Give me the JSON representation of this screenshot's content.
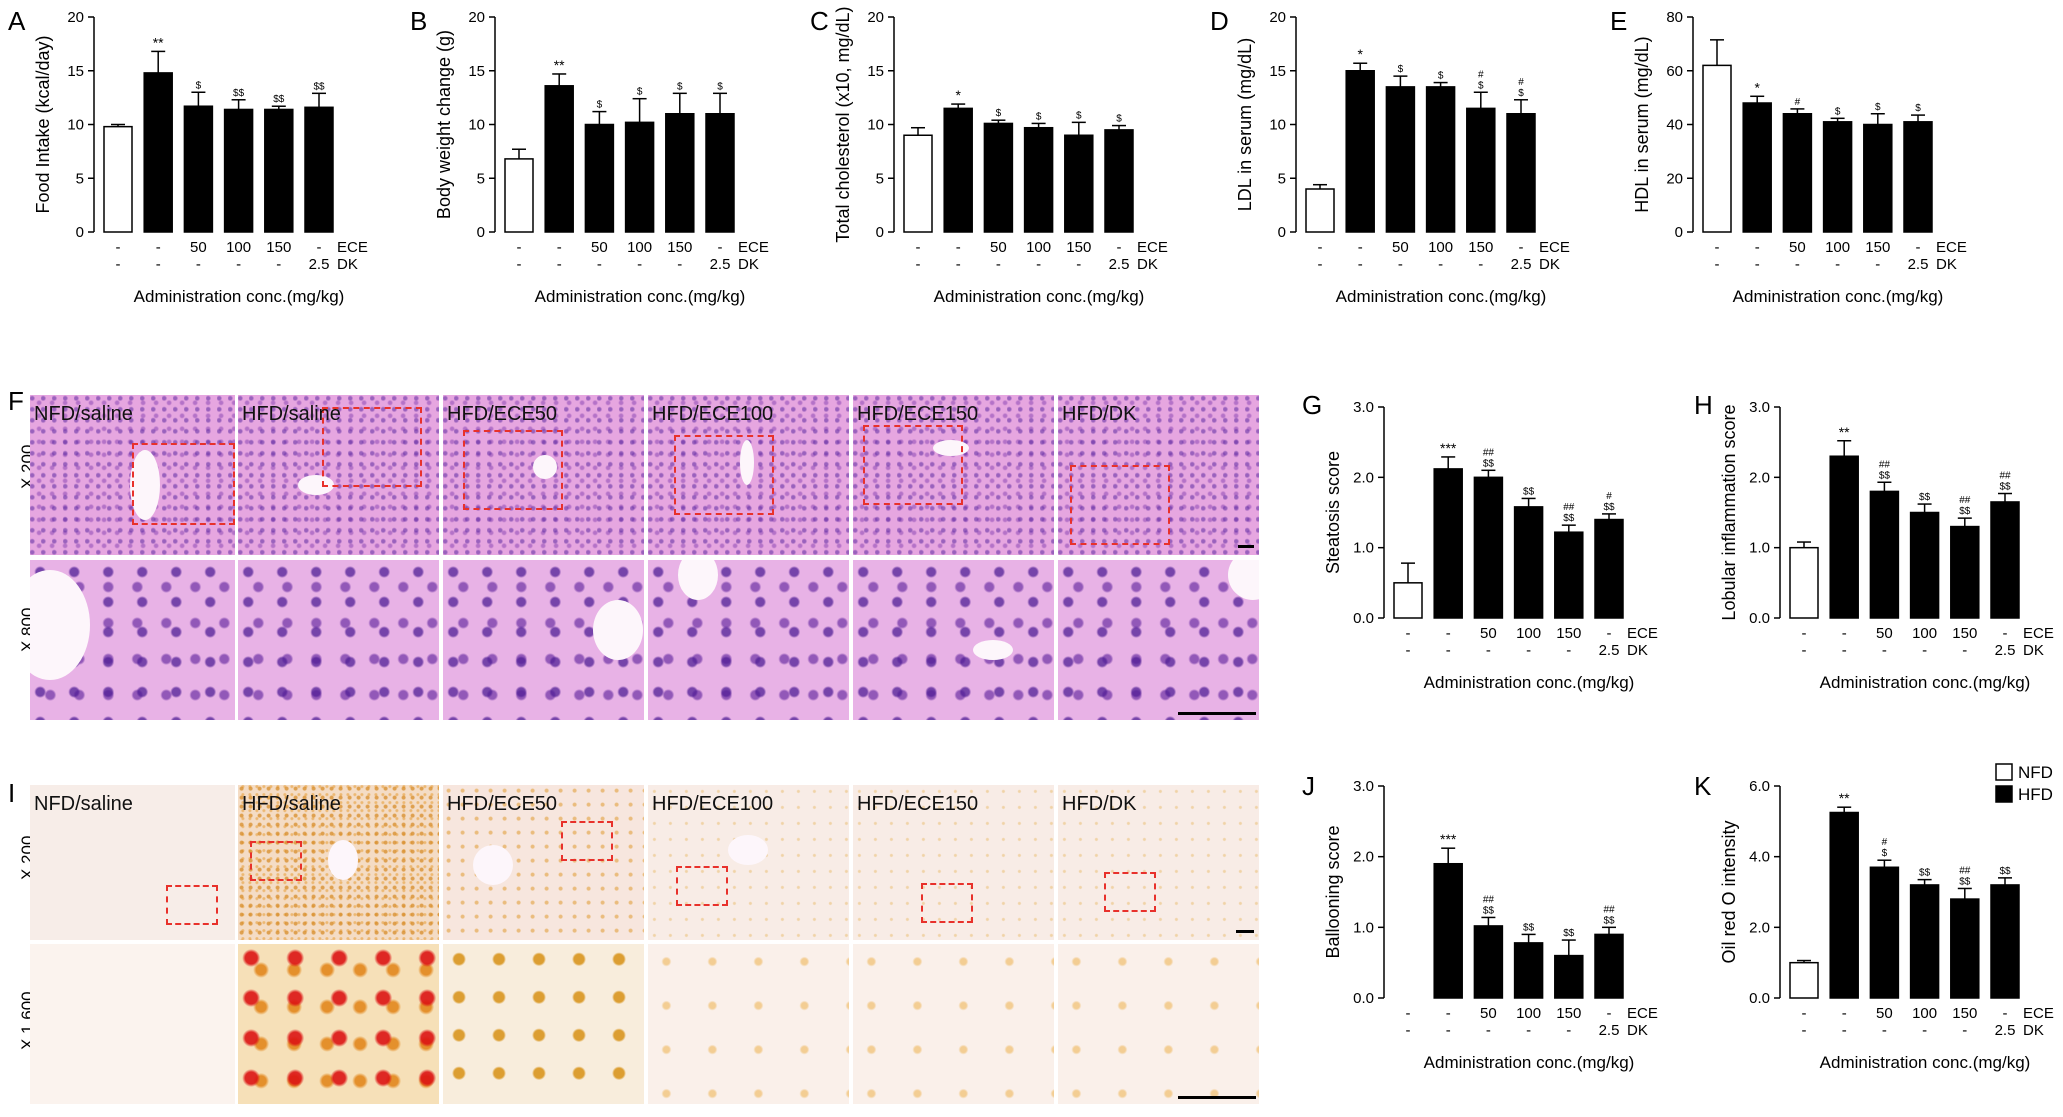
{
  "bar_style": {
    "control_fill": "#ffffff",
    "treated_fill": "#000000",
    "stroke": "#000000"
  },
  "x_rows": {
    "ece": [
      "-",
      "-",
      "50",
      "100",
      "150",
      "-"
    ],
    "dk": [
      "-",
      "-",
      "-",
      "-",
      "-",
      "2.5"
    ],
    "ece_label": "ECE",
    "dk_label": "DK",
    "axis_title": "Administration conc.(mg/kg)"
  },
  "legend": {
    "items": [
      {
        "label": "NFD",
        "fill": "#ffffff"
      },
      {
        "label": "HFD",
        "fill": "#000000"
      }
    ]
  },
  "chart_data": [
    {
      "id": "A",
      "type": "bar",
      "ylabel": "Food Intake (kcal/day)",
      "ylim": [
        0,
        20
      ],
      "yticks": [
        0,
        5,
        10,
        15,
        20
      ],
      "values": [
        9.8,
        14.8,
        11.7,
        11.4,
        11.4,
        11.6
      ],
      "errors": [
        0.2,
        2.0,
        1.3,
        0.9,
        0.3,
        1.3
      ],
      "sig_lines": [
        [
          "**"
        ],
        [
          "$"
        ],
        [
          "$$"
        ],
        [
          "$$"
        ],
        [
          "$$"
        ]
      ]
    },
    {
      "id": "B",
      "type": "bar",
      "ylabel": "Body weight change (g)",
      "ylim": [
        0,
        20
      ],
      "yticks": [
        0,
        5,
        10,
        15,
        20
      ],
      "values": [
        6.8,
        13.6,
        10.0,
        10.2,
        11.0,
        11.0
      ],
      "errors": [
        0.9,
        1.1,
        1.2,
        2.2,
        1.9,
        1.9
      ],
      "sig_lines": [
        [
          "**"
        ],
        [
          "$"
        ],
        [
          "$"
        ],
        [
          "$"
        ],
        [
          "$"
        ]
      ]
    },
    {
      "id": "C",
      "type": "bar",
      "ylabel": "Total cholesterol (x10, mg/dL)",
      "ylim": [
        0,
        20
      ],
      "yticks": [
        0,
        5,
        10,
        15,
        20
      ],
      "values": [
        9.0,
        11.5,
        10.1,
        9.7,
        9.0,
        9.5
      ],
      "errors": [
        0.7,
        0.4,
        0.3,
        0.4,
        1.2,
        0.4
      ],
      "sig_lines": [
        [
          "*"
        ],
        [
          "$"
        ],
        [
          "$"
        ],
        [
          "$"
        ],
        [
          "$"
        ]
      ]
    },
    {
      "id": "D",
      "type": "bar",
      "ylabel": "LDL in serum (mg/dL)",
      "ylim": [
        0,
        20
      ],
      "yticks": [
        0,
        5,
        10,
        15,
        20
      ],
      "values": [
        4.0,
        15.0,
        13.5,
        13.5,
        11.5,
        11.0
      ],
      "errors": [
        0.4,
        0.7,
        1.0,
        0.4,
        1.5,
        1.3
      ],
      "sig_lines": [
        [
          "*"
        ],
        [
          "$"
        ],
        [
          "$"
        ],
        [
          "#",
          "$"
        ],
        [
          "#",
          "$"
        ]
      ]
    },
    {
      "id": "E",
      "type": "bar",
      "ylabel": "HDL in serum (mg/dL)",
      "ylim": [
        0,
        80
      ],
      "yticks": [
        0,
        20,
        40,
        60,
        80
      ],
      "values": [
        62,
        48,
        44,
        41,
        40,
        41
      ],
      "errors": [
        9.5,
        2.5,
        1.8,
        1.3,
        4.0,
        2.5
      ],
      "sig_lines": [
        [
          "*"
        ],
        [
          "#"
        ],
        [
          "$"
        ],
        [
          "$"
        ],
        [
          "$"
        ]
      ]
    },
    {
      "id": "G",
      "type": "bar",
      "ylabel": "Steatosis score",
      "ylim": [
        0,
        3
      ],
      "yticks": [
        "0.0",
        "1.0",
        "2.0",
        "3.0"
      ],
      "values": [
        0.5,
        2.12,
        2.0,
        1.58,
        1.22,
        1.4
      ],
      "errors": [
        0.28,
        0.17,
        0.1,
        0.12,
        0.1,
        0.08
      ],
      "sig_lines": [
        [
          "***"
        ],
        [
          "##",
          "$$"
        ],
        [
          "$$"
        ],
        [
          "##",
          "$$"
        ],
        [
          "#",
          "$$"
        ]
      ]
    },
    {
      "id": "H",
      "type": "bar",
      "ylabel": "Lobular inflammation score",
      "ylim": [
        0,
        3
      ],
      "yticks": [
        "0.0",
        "1.0",
        "2.0",
        "3.0"
      ],
      "values": [
        1.0,
        2.3,
        1.8,
        1.5,
        1.3,
        1.65
      ],
      "errors": [
        0.08,
        0.22,
        0.13,
        0.12,
        0.12,
        0.12
      ],
      "sig_lines": [
        [
          "**"
        ],
        [
          "##",
          "$$"
        ],
        [
          "$$"
        ],
        [
          "##",
          "$$"
        ],
        [
          "##",
          "$$"
        ]
      ]
    },
    {
      "id": "J",
      "type": "bar",
      "ylabel": "Ballooning score",
      "ylim": [
        0,
        3
      ],
      "yticks": [
        "0.0",
        "1.0",
        "2.0",
        "3.0"
      ],
      "values": [
        0.0,
        1.9,
        1.02,
        0.78,
        0.6,
        0.9
      ],
      "errors": [
        0.0,
        0.22,
        0.12,
        0.12,
        0.22,
        0.1
      ],
      "sig_lines": [
        [
          "***"
        ],
        [
          "##",
          "$$"
        ],
        [
          "$$"
        ],
        [
          "$$"
        ],
        [
          "##",
          "$$"
        ]
      ]
    },
    {
      "id": "K",
      "type": "bar",
      "ylabel": "Oil red O  intensity",
      "ylim": [
        0,
        6
      ],
      "yticks": [
        "0.0",
        "2.0",
        "4.0",
        "6.0"
      ],
      "values": [
        1.0,
        5.25,
        3.7,
        3.2,
        2.8,
        3.2
      ],
      "errors": [
        0.06,
        0.15,
        0.2,
        0.15,
        0.3,
        0.2
      ],
      "sig_lines": [
        [
          "**"
        ],
        [
          "#",
          "$"
        ],
        [
          "$$"
        ],
        [
          "##",
          "$$"
        ],
        [
          "$$"
        ]
      ]
    }
  ],
  "micrographs": {
    "F": {
      "letter": "F",
      "rows": [
        "X 200",
        "X 800"
      ],
      "groups": [
        "NFD/saline",
        "HFD/saline",
        "HFD/ECE50",
        "HFD/ECE100",
        "HFD/ECE150",
        "HFD/DK"
      ]
    },
    "I": {
      "letter": "I",
      "rows": [
        "X 200",
        "X 1,600"
      ],
      "groups": [
        "NFD/saline",
        "HFD/saline",
        "HFD/ECE50",
        "HFD/ECE100",
        "HFD/ECE150",
        "HFD/DK"
      ]
    }
  }
}
